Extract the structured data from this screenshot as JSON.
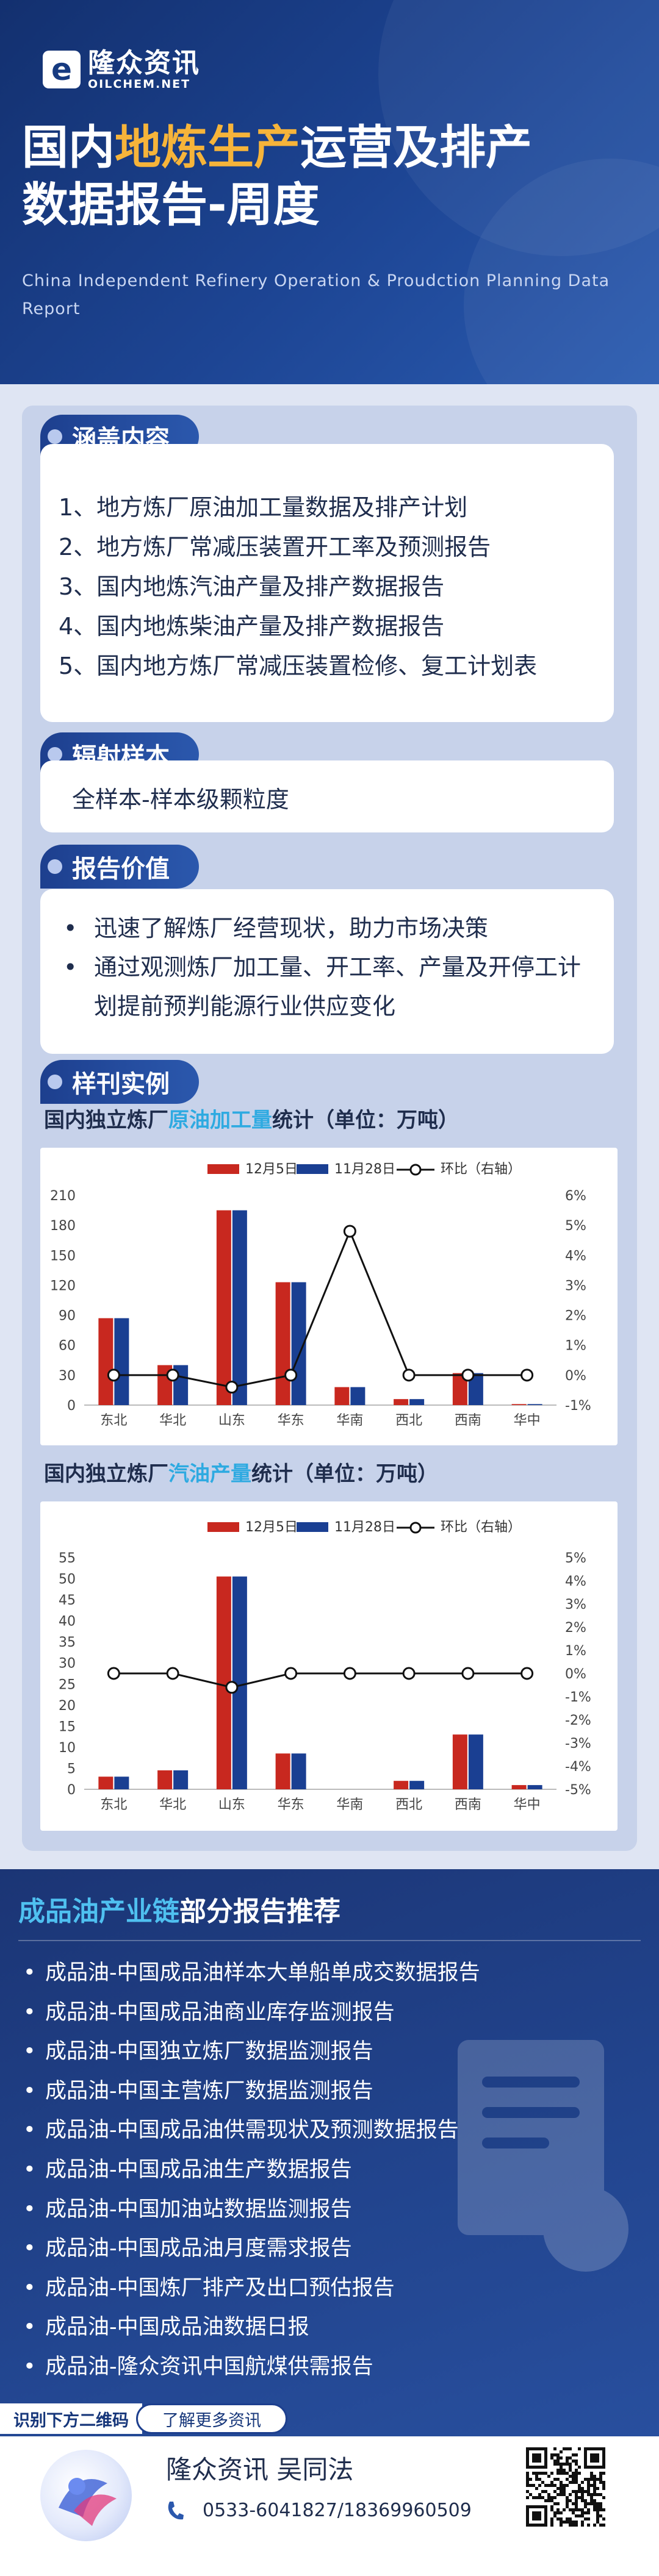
{
  "brand": {
    "logo_mark": "e",
    "name_cn": "隆众资讯",
    "name_en": "OILCHEM.NET"
  },
  "header": {
    "title_part1": "国内",
    "title_highlight": "地炼生产",
    "title_part2": "运营及排产",
    "title_line2": "数据报告-周度",
    "subtitle_en": "China Independent Refinery Operation & Proudction Planning Data Report"
  },
  "sections": {
    "coverage": {
      "tag": "涵盖内容",
      "items": [
        "1、地方炼厂原油加工量数据及排产计划",
        "2、地方炼厂常减压装置开工率及预测报告",
        "3、国内地炼汽油产量及排产数据报告",
        "4、国内地炼柴油产量及排产数据报告",
        "5、国内地方炼厂常减压装置检修、复工计划表"
      ]
    },
    "sample": {
      "tag": "辐射样本",
      "text": "全样本-样本级颗粒度"
    },
    "value": {
      "tag": "报告价值",
      "items": [
        "迅速了解炼厂经营现状，助力市场决策",
        "通过观测炼厂加工量、开工率、产量及开停工计划提前预判能源行业供应变化"
      ]
    },
    "examples": {
      "tag": "样刊实例"
    }
  },
  "chart_titles": [
    {
      "pre": "国内独立炼厂",
      "hl": "原油加工量",
      "post": "统计（单位：万吨）"
    },
    {
      "pre": "国内独立炼厂",
      "hl": "汽油产量",
      "post": "统计（单位：万吨）"
    }
  ],
  "colors": {
    "red": "#c8281f",
    "blue": "#1a3f92",
    "line": "#111111",
    "header_bg": "#1d4594",
    "accent": "#f6b43a",
    "cyan": "#2eaae1"
  },
  "chart_data": [
    {
      "type": "bar",
      "categories": [
        "东北",
        "华北",
        "山东",
        "华东",
        "华南",
        "西北",
        "西南",
        "华中"
      ],
      "series": [
        {
          "name": "12月5日",
          "values": [
            87,
            40,
            195,
            123,
            18,
            6,
            32,
            1
          ]
        },
        {
          "name": "11月28日",
          "values": [
            87,
            40,
            195,
            123,
            18,
            6,
            32,
            1
          ]
        },
        {
          "name": "环比（右轴）",
          "type": "line",
          "axis": "right",
          "values": [
            0,
            0,
            -0.4,
            0,
            4.8,
            0,
            0,
            0
          ]
        }
      ],
      "ylim": [
        0,
        210
      ],
      "yticks": [
        "0",
        "30",
        "60",
        "90",
        "120",
        "150",
        "180",
        "210"
      ],
      "ylim_right": [
        -1,
        6
      ],
      "yticks_right": [
        "-1%",
        "0%",
        "1%",
        "2%",
        "3%",
        "4%",
        "5%",
        "6%"
      ],
      "legend": "top"
    },
    {
      "type": "bar",
      "categories": [
        "东北",
        "华北",
        "山东",
        "华东",
        "华南",
        "西北",
        "西南",
        "华中"
      ],
      "series": [
        {
          "name": "12月5日",
          "values": [
            3,
            4.5,
            50.5,
            8.5,
            0,
            2,
            13,
            1
          ]
        },
        {
          "name": "11月28日",
          "values": [
            3,
            4.5,
            50.5,
            8.5,
            0,
            2,
            13,
            1
          ]
        },
        {
          "name": "环比（右轴）",
          "type": "line",
          "axis": "right",
          "values": [
            0,
            0,
            -0.6,
            0,
            0,
            0,
            0,
            0
          ]
        }
      ],
      "ylim": [
        0,
        55
      ],
      "yticks": [
        "0",
        "5",
        "10",
        "15",
        "20",
        "25",
        "30",
        "35",
        "40",
        "45",
        "50",
        "55"
      ],
      "ylim_right": [
        -5,
        5
      ],
      "yticks_right": [
        "-5%",
        "-4%",
        "-3%",
        "-2%",
        "-1%",
        "0%",
        "1%",
        "2%",
        "3%",
        "4%",
        "5%"
      ],
      "legend": "top"
    }
  ],
  "recommend": {
    "title_part1": "成品油产业链",
    "title_part2": "部分报告推荐",
    "items": [
      "成品油-中国成品油样本大单船单成交数据报告",
      "成品油-中国成品油商业库存监测报告",
      "成品油-中国独立炼厂数据监测报告",
      "成品油-中国主营炼厂数据监测报告",
      "成品油-中国成品油供需现状及预测数据报告",
      "成品油-中国成品油生产数据报告",
      "成品油-中国加油站数据监测报告",
      "成品油-中国成品油月度需求报告",
      "成品油-中国炼厂排产及出口预估报告",
      "成品油-中国成品油数据日报",
      "成品油-隆众资讯中国航煤供需报告"
    ],
    "qr_tip_left": "识别下方二维码",
    "qr_tip_right": "了解更多资讯"
  },
  "footer": {
    "contact_name": "隆众资讯 吴同法",
    "phone": "0533-6041827/18369960509",
    "icons": {
      "phone": "phone-icon",
      "qr": "qr-code-icon",
      "avatar": "brand-avatar-icon"
    }
  }
}
